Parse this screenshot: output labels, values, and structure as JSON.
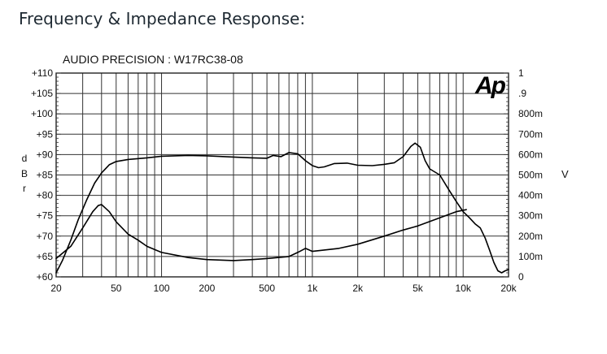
{
  "page": {
    "heading": "Frequency & Impedance Response:"
  },
  "chart_data": {
    "type": "line",
    "title": "AUDIO PRECISION : W17RC38-08",
    "logo_text": "Ap",
    "xscale": "log",
    "xlim": [
      20,
      20000
    ],
    "xticks": [
      {
        "value": 20,
        "label": "20"
      },
      {
        "value": 50,
        "label": "50"
      },
      {
        "value": 100,
        "label": "100"
      },
      {
        "value": 200,
        "label": "200"
      },
      {
        "value": 500,
        "label": "500"
      },
      {
        "value": 1000,
        "label": "1k"
      },
      {
        "value": 2000,
        "label": "2k"
      },
      {
        "value": 5000,
        "label": "5k"
      },
      {
        "value": 10000,
        "label": "10k"
      },
      {
        "value": 20000,
        "label": "20k"
      }
    ],
    "ylabel_chars": [
      "d",
      "B",
      "r"
    ],
    "ylim": [
      60,
      110
    ],
    "yticks": [
      {
        "value": 60,
        "label": "+60"
      },
      {
        "value": 65,
        "label": "+65"
      },
      {
        "value": 70,
        "label": "+70"
      },
      {
        "value": 75,
        "label": "+75"
      },
      {
        "value": 80,
        "label": "+80"
      },
      {
        "value": 85,
        "label": "+85"
      },
      {
        "value": 90,
        "label": "+90"
      },
      {
        "value": 95,
        "label": "+95"
      },
      {
        "value": 100,
        "label": "+100"
      },
      {
        "value": 105,
        "label": "+105"
      },
      {
        "value": 110,
        "label": "+110"
      }
    ],
    "y2label": "V",
    "y2lim": [
      0,
      1
    ],
    "y2ticks": [
      {
        "value": 0,
        "label": "0"
      },
      {
        "value": 0.1,
        "label": "100m"
      },
      {
        "value": 0.2,
        "label": "200m"
      },
      {
        "value": 0.3,
        "label": "300m"
      },
      {
        "value": 0.4,
        "label": "400m"
      },
      {
        "value": 0.5,
        "label": "500m"
      },
      {
        "value": 0.6,
        "label": "600m"
      },
      {
        "value": 0.7,
        "label": "700m"
      },
      {
        "value": 0.8,
        "label": "800m"
      },
      {
        "value": 0.9,
        "label": ".9"
      },
      {
        "value": 1,
        "label": "1"
      }
    ],
    "grid": true,
    "series": [
      {
        "values": [
          [
            20,
            61
          ],
          [
            22,
            64
          ],
          [
            25,
            69
          ],
          [
            28,
            74
          ],
          [
            32,
            79
          ],
          [
            36,
            83
          ],
          [
            40,
            85.5
          ],
          [
            45,
            87.5
          ],
          [
            50,
            88.3
          ],
          [
            60,
            88.8
          ],
          [
            80,
            89.2
          ],
          [
            100,
            89.6
          ],
          [
            150,
            89.8
          ],
          [
            200,
            89.7
          ],
          [
            300,
            89.4
          ],
          [
            400,
            89.2
          ],
          [
            500,
            89.1
          ],
          [
            550,
            89.8
          ],
          [
            620,
            89.5
          ],
          [
            700,
            90.5
          ],
          [
            800,
            90.2
          ],
          [
            900,
            88.5
          ],
          [
            1000,
            87.3
          ],
          [
            1100,
            86.8
          ],
          [
            1200,
            87.0
          ],
          [
            1400,
            87.8
          ],
          [
            1700,
            87.9
          ],
          [
            2000,
            87.4
          ],
          [
            2500,
            87.3
          ],
          [
            3000,
            87.6
          ],
          [
            3500,
            88.0
          ],
          [
            4000,
            89.5
          ],
          [
            4500,
            92.0
          ],
          [
            4800,
            92.8
          ],
          [
            5200,
            91.8
          ],
          [
            5600,
            88.5
          ],
          [
            6000,
            86.5
          ],
          [
            7000,
            85.0
          ],
          [
            8000,
            81.5
          ],
          [
            9000,
            78.5
          ],
          [
            10000,
            76.0
          ],
          [
            11000,
            74.5
          ],
          [
            12000,
            73.0
          ],
          [
            13000,
            72.0
          ],
          [
            14000,
            69.5
          ],
          [
            15000,
            66.5
          ],
          [
            16000,
            63.5
          ],
          [
            17000,
            61.5
          ],
          [
            18000,
            61.0
          ],
          [
            19000,
            61.5
          ],
          [
            20000,
            61.8
          ]
        ]
      },
      {
        "axis": "right",
        "values": [
          [
            20,
            0.09
          ],
          [
            25,
            0.15
          ],
          [
            30,
            0.24
          ],
          [
            35,
            0.32
          ],
          [
            38,
            0.35
          ],
          [
            40,
            0.355
          ],
          [
            45,
            0.32
          ],
          [
            50,
            0.27
          ],
          [
            60,
            0.21
          ],
          [
            70,
            0.18
          ],
          [
            80,
            0.15
          ],
          [
            100,
            0.12
          ],
          [
            150,
            0.095
          ],
          [
            200,
            0.085
          ],
          [
            300,
            0.08
          ],
          [
            400,
            0.085
          ],
          [
            500,
            0.09
          ],
          [
            700,
            0.1
          ],
          [
            800,
            0.12
          ],
          [
            900,
            0.14
          ],
          [
            1000,
            0.125
          ],
          [
            1500,
            0.14
          ],
          [
            2000,
            0.16
          ],
          [
            3000,
            0.2
          ],
          [
            4000,
            0.23
          ],
          [
            5000,
            0.25
          ],
          [
            7000,
            0.29
          ],
          [
            9000,
            0.32
          ],
          [
            10500,
            0.33
          ]
        ]
      }
    ]
  }
}
